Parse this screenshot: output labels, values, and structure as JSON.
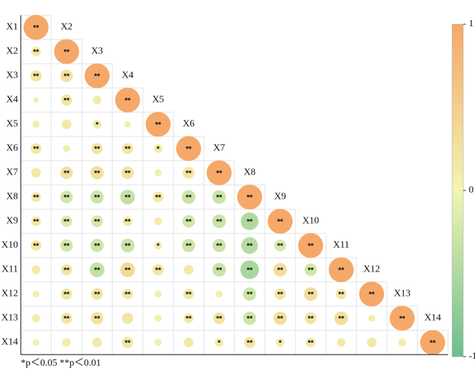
{
  "chart_data": {
    "type": "correlogram",
    "variables": [
      "X1",
      "X2",
      "X3",
      "X4",
      "X5",
      "X6",
      "X7",
      "X8",
      "X9",
      "X10",
      "X11",
      "X12",
      "X13",
      "X14"
    ],
    "values": [
      [
        1
      ],
      [
        0.15,
        1
      ],
      [
        0.2,
        0.25,
        1
      ],
      [
        0.05,
        0.2,
        0.12,
        1
      ],
      [
        0.08,
        0.15,
        0.12,
        0.07,
        1
      ],
      [
        0.18,
        0.08,
        0.2,
        0.2,
        0.12,
        1
      ],
      [
        0.15,
        0.25,
        0.28,
        0.25,
        0.08,
        0.22,
        1
      ],
      [
        0.15,
        -0.25,
        -0.28,
        -0.35,
        0.18,
        -0.3,
        -0.3,
        1
      ],
      [
        0.15,
        -0.2,
        -0.22,
        0.15,
        0.1,
        -0.25,
        -0.3,
        -0.5,
        1
      ],
      [
        0.18,
        -0.25,
        -0.28,
        -0.3,
        0.1,
        -0.28,
        -0.28,
        -0.45,
        -0.22,
        1
      ],
      [
        0.12,
        0.2,
        -0.35,
        0.35,
        0.2,
        0.15,
        -0.3,
        -0.55,
        0.3,
        -0.25,
        1
      ],
      [
        0.08,
        0.2,
        0.22,
        0.18,
        0.08,
        0.18,
        0.08,
        -0.28,
        0.2,
        0.3,
        0.18,
        1
      ],
      [
        0.1,
        0.2,
        0.25,
        0.2,
        0.08,
        0.15,
        0.22,
        -0.28,
        0.28,
        0.22,
        0.3,
        0.08,
        1
      ],
      [
        0.07,
        0.12,
        0.15,
        0.2,
        0.08,
        0.15,
        0.12,
        0.2,
        0.12,
        0.15,
        0.12,
        0.15,
        0.1,
        1
      ]
    ],
    "stars": [
      [
        "**"
      ],
      [
        "**",
        "**"
      ],
      [
        "**",
        "**",
        "**"
      ],
      [
        null,
        "**",
        null,
        "**"
      ],
      [
        null,
        null,
        "*",
        null,
        "**"
      ],
      [
        "**",
        null,
        "**",
        "**",
        "*",
        "**"
      ],
      [
        null,
        "**",
        "**",
        "**",
        null,
        "**",
        "**"
      ],
      [
        "**",
        "**",
        "**",
        "**",
        "**",
        "**",
        "**",
        "**"
      ],
      [
        "**",
        "**",
        "**",
        "**",
        null,
        "**",
        "**",
        "**",
        "**"
      ],
      [
        "**",
        "**",
        "**",
        "**",
        "*",
        "**",
        "**",
        "**",
        "**",
        "**"
      ],
      [
        null,
        "**",
        "**",
        "**",
        "**",
        null,
        "**",
        "**",
        "**",
        "**",
        "**"
      ],
      [
        null,
        "**",
        "**",
        "**",
        null,
        "**",
        null,
        "**",
        "**",
        "**",
        "**",
        "**"
      ],
      [
        null,
        "**",
        "**",
        null,
        null,
        "**",
        "**",
        "**",
        "**",
        "**",
        "**",
        null,
        "**"
      ],
      [
        null,
        null,
        null,
        "**",
        null,
        null,
        "*",
        "**",
        "*",
        "**",
        null,
        null,
        null,
        "**"
      ]
    ],
    "colors": [
      "#6dbd8e",
      "#f2f5b2",
      "#f5a868"
    ],
    "clim": [
      -1,
      1
    ],
    "cticks": [
      1,
      0,
      -1
    ],
    "footnote": "*p＜0.05 **p＜0.01"
  }
}
